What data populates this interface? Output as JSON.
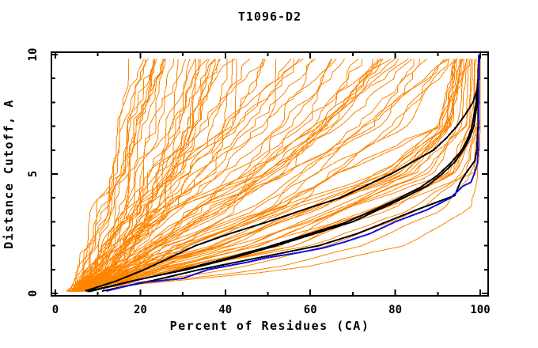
{
  "chart_data": {
    "type": "line",
    "title": "T1096-D2",
    "xlabel": "Percent of Residues (CA)",
    "ylabel": "Distance Cutoff, A",
    "xlim": [
      0,
      100
    ],
    "ylim": [
      0,
      10
    ],
    "x_major_ticks": [
      0,
      20,
      40,
      60,
      80,
      100
    ],
    "x_minor_ticks": [
      10,
      30,
      50,
      70,
      90
    ],
    "y_major_ticks": [
      0,
      5,
      10
    ],
    "y_minor_ticks": [
      1,
      2,
      3,
      4,
      6,
      7,
      8,
      9
    ],
    "grid": false,
    "legend": "none",
    "colors": {
      "background": "#ffffff",
      "axis": "#000000",
      "text": "#000000",
      "ensemble": "#ff8500",
      "reference": "#000000",
      "best_model": "#1111dd"
    },
    "reference_curves": [
      {
        "name": "reference-black-upper",
        "color_key": "reference",
        "width": 2,
        "points": [
          [
            7,
            0.1
          ],
          [
            14,
            0.5
          ],
          [
            21,
            1.0
          ],
          [
            27,
            1.5
          ],
          [
            33,
            2.0
          ],
          [
            41,
            2.5
          ],
          [
            50,
            3.0
          ],
          [
            60,
            3.6
          ],
          [
            67,
            4.0
          ],
          [
            73,
            4.5
          ],
          [
            79,
            5.0
          ],
          [
            84,
            5.5
          ],
          [
            89,
            6.0
          ],
          [
            92,
            6.5
          ],
          [
            94.5,
            7.0
          ],
          [
            96.5,
            7.5
          ],
          [
            98.3,
            8.0
          ],
          [
            99.2,
            8.5
          ],
          [
            99.6,
            9.0
          ],
          [
            99.8,
            10
          ]
        ]
      },
      {
        "name": "reference-black-mid-1",
        "color_key": "reference",
        "width": 2,
        "points": [
          [
            7.5,
            0.08
          ],
          [
            20,
            0.6
          ],
          [
            31,
            1.0
          ],
          [
            42,
            1.5
          ],
          [
            52,
            2.0
          ],
          [
            61,
            2.5
          ],
          [
            70,
            3.0
          ],
          [
            76,
            3.5
          ],
          [
            82,
            4.0
          ],
          [
            87.5,
            4.5
          ],
          [
            91,
            5.0
          ],
          [
            94,
            5.5
          ],
          [
            96,
            6.0
          ],
          [
            97.5,
            6.5
          ],
          [
            98.5,
            7.0
          ],
          [
            99.3,
            8.0
          ],
          [
            99.7,
            9.0
          ],
          [
            99.8,
            10
          ]
        ]
      },
      {
        "name": "reference-black-mid-2",
        "color_key": "reference",
        "width": 2,
        "points": [
          [
            8,
            0.08
          ],
          [
            19,
            0.55
          ],
          [
            29,
            0.95
          ],
          [
            40,
            1.45
          ],
          [
            50,
            1.95
          ],
          [
            59,
            2.45
          ],
          [
            68,
            2.95
          ],
          [
            74.5,
            3.45
          ],
          [
            80.5,
            3.95
          ],
          [
            86,
            4.45
          ],
          [
            90,
            4.95
          ],
          [
            93,
            5.45
          ],
          [
            95.5,
            5.95
          ],
          [
            97,
            6.45
          ],
          [
            98,
            6.95
          ],
          [
            99,
            7.95
          ],
          [
            99.5,
            9.0
          ],
          [
            99.7,
            10
          ]
        ]
      },
      {
        "name": "reference-black-low",
        "color_key": "reference",
        "width": 2,
        "points": [
          [
            11,
            0.1
          ],
          [
            22,
            0.5
          ],
          [
            34,
            1.0
          ],
          [
            48,
            1.5
          ],
          [
            62,
            2.0
          ],
          [
            71,
            2.5
          ],
          [
            78,
            3.0
          ],
          [
            85,
            3.5
          ],
          [
            94,
            4.1
          ],
          [
            95.3,
            4.65
          ],
          [
            96.5,
            5.0
          ],
          [
            98.7,
            5.55
          ],
          [
            99.2,
            6.0
          ],
          [
            99.5,
            7.0
          ],
          [
            99.6,
            8.5
          ],
          [
            99.7,
            10
          ]
        ]
      },
      {
        "name": "best-model-blue",
        "color_key": "best_model",
        "width": 2,
        "points": [
          [
            12,
            0.1
          ],
          [
            20,
            0.45
          ],
          [
            30,
            0.63
          ],
          [
            36,
            1.0
          ],
          [
            45,
            1.3
          ],
          [
            50,
            1.5
          ],
          [
            57,
            1.7
          ],
          [
            63,
            1.9
          ],
          [
            68,
            2.15
          ],
          [
            74,
            2.5
          ],
          [
            80,
            3.0
          ],
          [
            87.5,
            3.5
          ],
          [
            93,
            4.0
          ],
          [
            96,
            4.5
          ],
          [
            97.8,
            4.65
          ],
          [
            98.6,
            5.0
          ],
          [
            99.3,
            5.4
          ],
          [
            99.5,
            6.0
          ],
          [
            99.6,
            7.0
          ],
          [
            99.6,
            10
          ]
        ]
      }
    ],
    "ensemble": {
      "color_key": "ensemble",
      "width": 1,
      "cutoff_anchors": [
        0.15,
        1,
        2,
        3.5,
        5,
        7,
        10
      ],
      "groups": [
        {
          "name": "poor-models",
          "count": 30,
          "seed": 11,
          "jitter": 1.0,
          "anchors_from": [
            4,
            5.5,
            7,
            9,
            11,
            14,
            18
          ],
          "anchors_to": [
            5.5,
            14.5,
            19,
            25,
            30,
            36,
            42
          ]
        },
        {
          "name": "mid-models",
          "count": 22,
          "seed": 57,
          "jitter": 1.0,
          "anchors_from": [
            4,
            8,
            12,
            17,
            23,
            31,
            43
          ],
          "anchors_to": [
            6,
            19,
            27,
            40,
            52,
            65,
            76
          ]
        },
        {
          "name": "good-models",
          "count": 18,
          "seed": 83,
          "jitter": 0.8,
          "anchors_from": [
            4.5,
            10,
            17,
            27,
            42,
            57,
            77
          ],
          "anchors_to": [
            6.5,
            22,
            34,
            57,
            74,
            89,
            99
          ]
        },
        {
          "name": "best-bundle",
          "count": 22,
          "seed": 29,
          "jitter": 0.5,
          "anchors_from": [
            5,
            14,
            33,
            52,
            76,
            90,
            94
          ],
          "anchors_to": [
            7,
            31,
            58,
            80,
            96,
            99.3,
            100
          ]
        }
      ],
      "outlier_curves": [
        [
          6,
          42,
          64,
          86,
          96.5,
          99.2,
          99.8
        ],
        [
          6,
          50,
          72,
          91,
          98,
          99.6,
          100
        ],
        [
          6,
          56,
          82,
          97.5,
          99.3,
          99.9,
          100
        ]
      ]
    }
  }
}
